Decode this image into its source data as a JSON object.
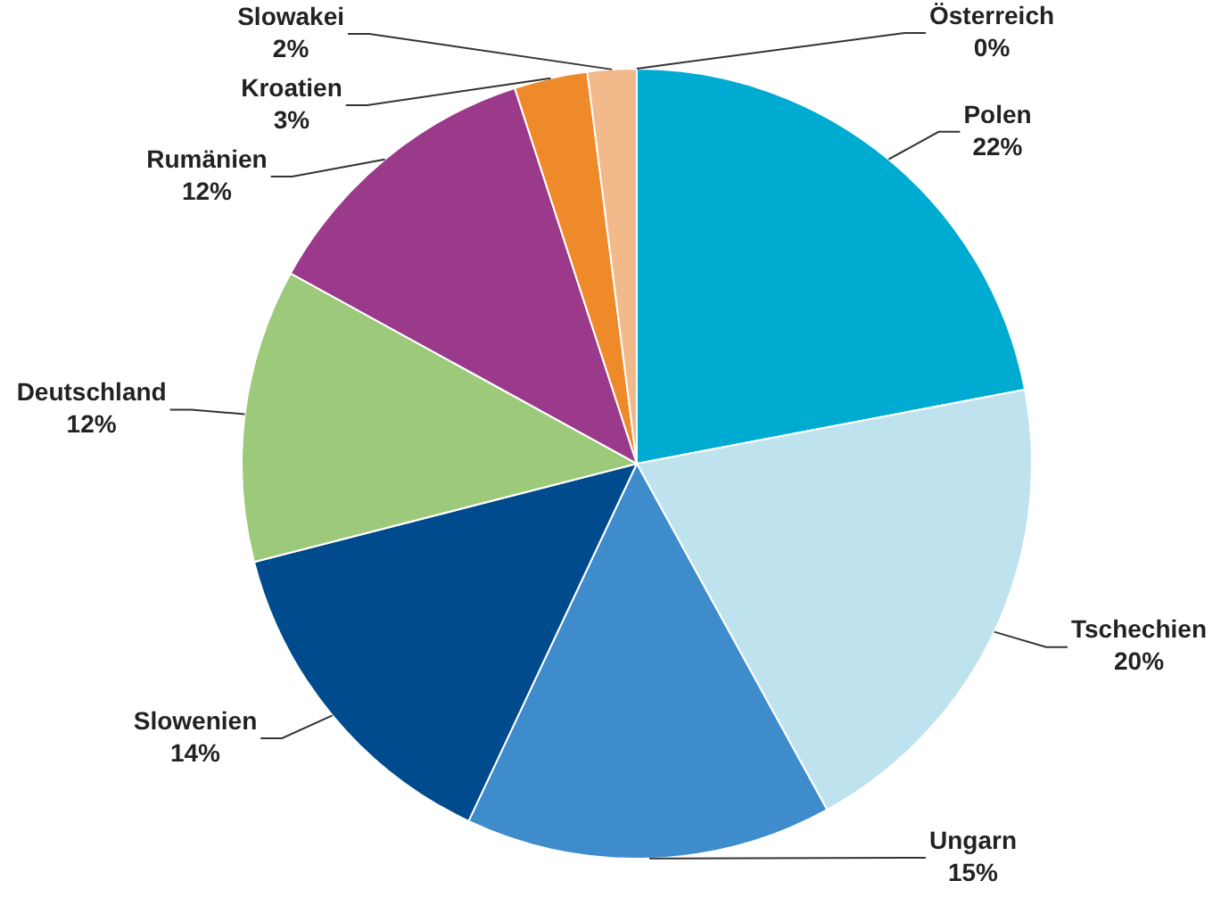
{
  "chart_data": {
    "type": "pie",
    "categories": [
      "Polen",
      "Tschechien",
      "Ungarn",
      "Slowenien",
      "Deutschland",
      "Rumänien",
      "Kroatien",
      "Slowakei",
      "Österreich"
    ],
    "values": [
      22,
      20,
      15,
      14,
      12,
      12,
      3,
      2,
      0
    ],
    "value_labels": [
      "22%",
      "20%",
      "15%",
      "14%",
      "12%",
      "12%",
      "3%",
      "2%",
      "0%"
    ],
    "colors": [
      "#00abd2",
      "#bfe3ee",
      "#3e8ccb",
      "#004b8d",
      "#9dc97a",
      "#9b3a8b",
      "#ef8a2a",
      "#f2b98a",
      "#c0c0c0"
    ],
    "legend": false
  }
}
